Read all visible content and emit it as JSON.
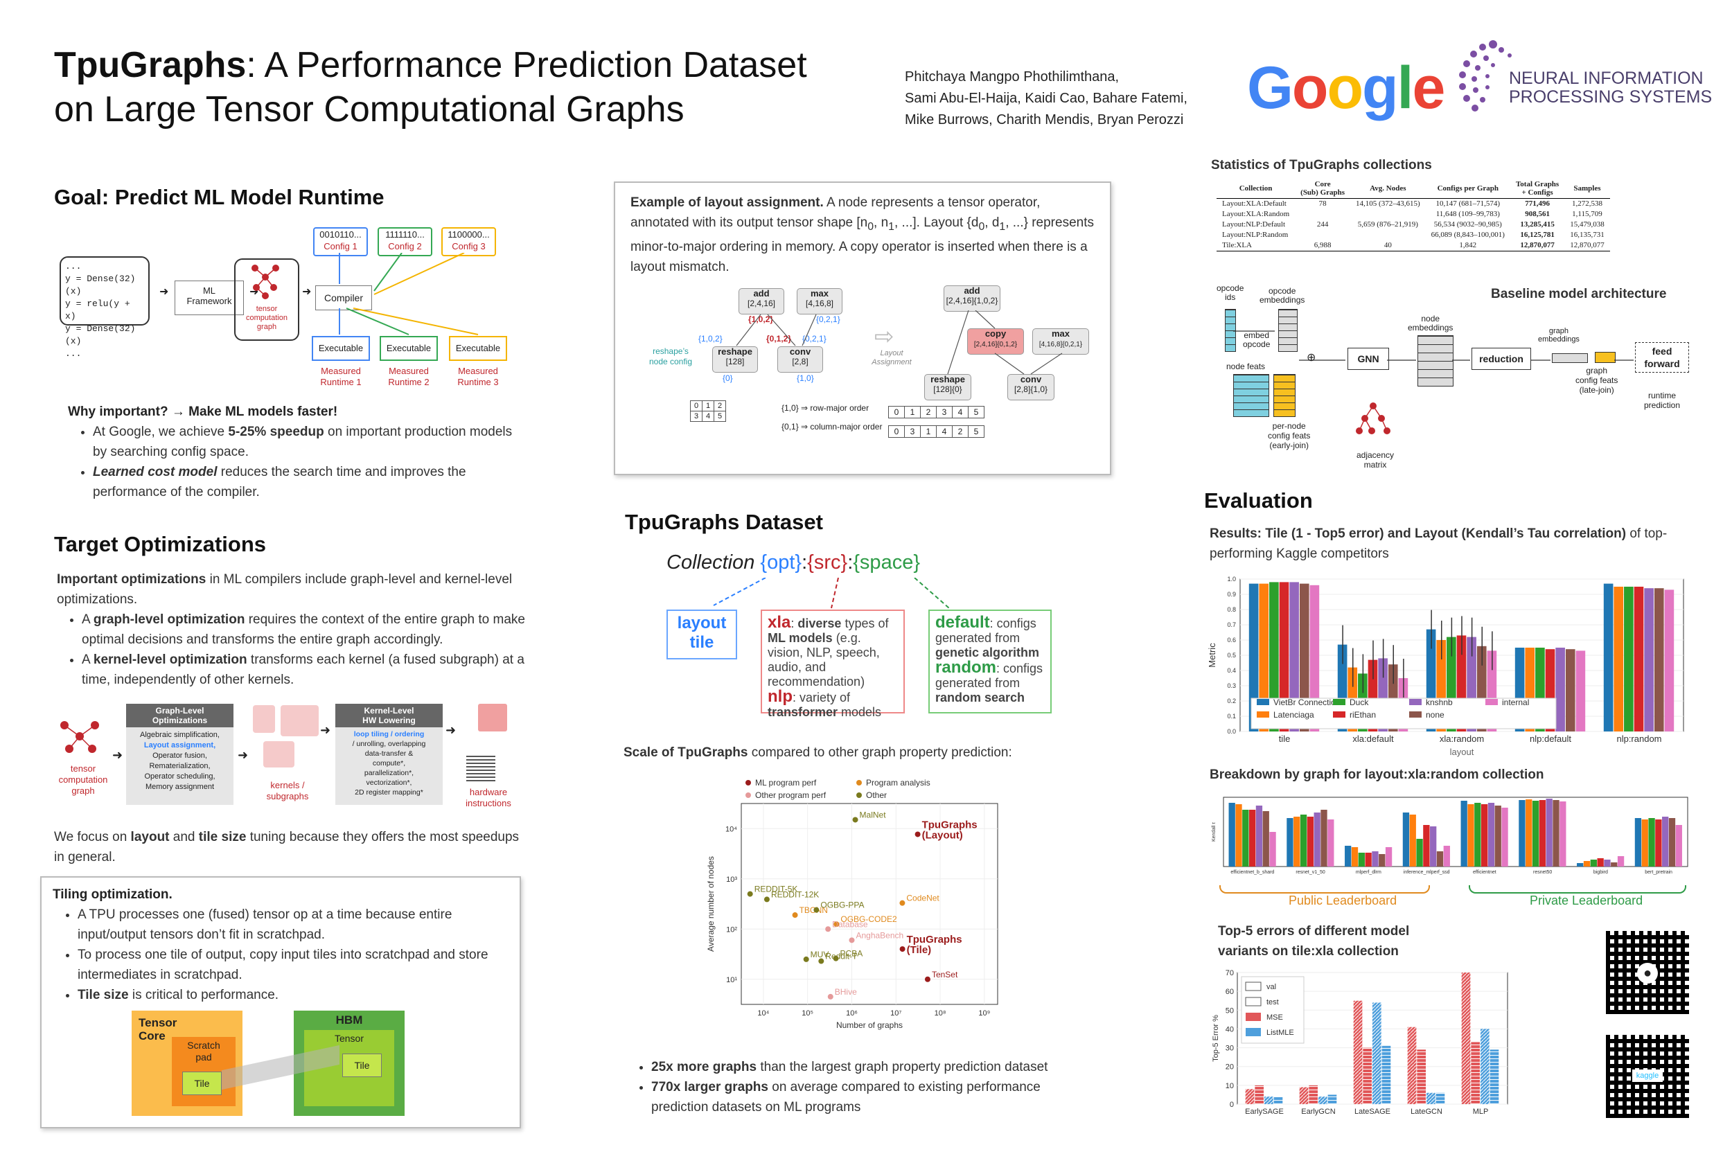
{
  "header": {
    "title_bold": "TpuGraphs",
    "title_rest_line1": ": A Performance Prediction Dataset",
    "title_line2": "on Large Tensor Computational Graphs",
    "authors": [
      "Phitchaya Mangpo Phothilimthana,",
      "Sami Abu-El-Haija, Kaidi Cao, Bahare Fatemi,",
      "Mike Burrows, Charith Mendis, Bryan Perozzi"
    ],
    "google_logo": "Google",
    "nips_logo": [
      "NEURAL INFORMATION",
      "PROCESSING SYSTEMS"
    ]
  },
  "goal": {
    "heading": "Goal: Predict ML Model Runtime",
    "code": [
      "...",
      "y = Dense(32)(x)",
      "y = relu(y + x)",
      "y = Dense(32)(x)",
      "..."
    ],
    "framework": "ML\nFramework",
    "graph_label": "tensor\ncomputation\ngraph",
    "compiler": "Compiler",
    "configs": [
      {
        "bits": "0010110...",
        "name": "Config 1",
        "color": "#4285f4"
      },
      {
        "bits": "1111110...",
        "name": "Config 2",
        "color": "#34a853"
      },
      {
        "bits": "1100000...",
        "name": "Config 3",
        "color": "#f4b400"
      }
    ],
    "executable": "Executable",
    "runtimes": [
      "Measured\nRuntime 1",
      "Measured\nRuntime 2",
      "Measured\nRuntime 3"
    ],
    "why_heading": "Why important? → Make ML models faster!",
    "why_b1_a": "At Google, we achieve ",
    "why_b1_b": "5-25% speedup",
    "why_b1_c": " on important production models by searching config space.",
    "why_b2_a": "Learned cost model",
    "why_b2_b": " reduces the search time and improves the performance of the compiler."
  },
  "target": {
    "heading": "Target Optimizations",
    "intro_a": "Important optimizations",
    "intro_b": " in ML compilers include graph-level and kernel-level optimizations.",
    "b1_a": "A ",
    "b1_b": "graph-level optimization",
    "b1_c": " requires the context of the entire graph to make optimal decisions and transforms the entire graph accordingly.",
    "b2_a": "A ",
    "b2_b": "kernel-level optimization",
    "b2_c": " transforms each kernel (a fused subgraph) at a time, independently of other kernels.",
    "fig_graph": "tensor\ncomputation\ngraph",
    "graph_level_title": "Graph-Level\nOptimizations",
    "graph_level_items": [
      "Algebraic simplification,",
      "Layout assignment,",
      "Operator fusion,",
      "Rematerialization,",
      "Operator scheduling,",
      "Memory assignment"
    ],
    "kernels_label": "kernels /\nsubgraphs",
    "kernel_level_title": "Kernel-Level\nHW Lowering",
    "kernel_level_items": [
      "loop tiling / ordering",
      "/ unrolling, overlapping",
      "data-transfer &",
      "compute*,",
      "parallelization*,",
      "vectorization*,",
      "2D register mapping*"
    ],
    "hw_label": "hardware\ninstructions",
    "focus_a": "We focus on ",
    "focus_b": "layout",
    "focus_c": " and ",
    "focus_d": "tile size",
    "focus_e": " tuning because they offers the most speedups in general."
  },
  "tiling": {
    "heading": "Tiling optimization.",
    "b1": "A TPU processes one (fused) tensor op at a time because entire input/output tensors don’t fit in scratchpad.",
    "b2": "To process one tile of output, copy input tiles into scratchpad and store intermediates in scratchpad.",
    "b3_a": "Tile size",
    "b3_b": " is critical to performance.",
    "tensor_core": "Tensor\nCore",
    "scratchpad": "Scratch\npad",
    "tile": "Tile",
    "hbm": "HBM",
    "tensor": "Tensor"
  },
  "layout_example": {
    "t1": "Example of layout assignment.",
    "t2": " A node represents a tensor operator, annotated with its output tensor shape [n",
    "t3": ", n",
    "t4": ", ...]. Layout {d",
    "t5": ", d",
    "t6": ", ...} represents minor-to-major ordering in memory. A copy operator is inserted when there is a layout mismatch.",
    "sub0": "0",
    "sub1": "1",
    "left_nodes": [
      {
        "op": "add",
        "shape": "[2,4,16]"
      },
      {
        "op": "max",
        "shape": "[4,16,8]"
      },
      {
        "op": "reshape",
        "shape": "[128]"
      },
      {
        "op": "conv",
        "shape": "[2,8]"
      }
    ],
    "left_layouts": [
      "{1,0,2}",
      "{1,0,2}",
      "{0,1,2}",
      "{0,2,1}",
      "{0,2,1}",
      "{0}",
      "{1,0}"
    ],
    "reshape_config": "reshape’s\nnode config",
    "row_major": "{1,0} ⇒ row-major order",
    "col_major": "{0,1} ⇒ column-major order",
    "grid_small": [
      [
        "0",
        "1",
        "2"
      ],
      [
        "3",
        "4",
        "5"
      ]
    ],
    "row_order": [
      "0",
      "1",
      "2",
      "3",
      "4",
      "5"
    ],
    "col_order": [
      "0",
      "3",
      "1",
      "4",
      "2",
      "5"
    ],
    "arrow_label": "Layout\nAssignment",
    "right_nodes": [
      {
        "op": "add",
        "shape": "[2,4,16]{1,0,2}"
      },
      {
        "op": "copy",
        "shape": "[2,4,16]{0,1,2}"
      },
      {
        "op": "max",
        "shape": "[4,16,8]{0,2,1}"
      },
      {
        "op": "reshape",
        "shape": "[128]{0}"
      },
      {
        "op": "conv",
        "shape": "[2,8]{1,0}"
      }
    ]
  },
  "dataset": {
    "heading": "TpuGraphs Dataset",
    "coll": "Collection ",
    "opt": "{opt}",
    "src": "{src}",
    "space": "{space}",
    "colon": ":",
    "opt_box": "layout\ntile",
    "src_xla": "xla",
    "src_xla_a": ": ",
    "src_xla_b": "diverse",
    "src_xla_c": " types of ",
    "src_xla_d": "ML models",
    "src_xla_e": " (e.g. vision, NLP, speech, audio, and recommendation)",
    "src_nlp": "nlp",
    "src_nlp_a": ": variety of ",
    "src_nlp_b": "transformer",
    "src_nlp_c": " models",
    "space_default": "default",
    "space_default_a": ": configs generated from ",
    "space_default_b": "genetic algorithm",
    "space_random": "random",
    "space_random_a": ": configs generated from ",
    "space_random_b": "random search",
    "scale_a": "Scale of TpuGraphs",
    "scale_b": " compared to other graph property prediction:",
    "b1_a": "25x more graphs",
    "b1_b": " than the largest graph property prediction dataset",
    "b2_a": "770x larger graphs",
    "b2_b": " on average compared to existing performance prediction datasets on ML programs"
  },
  "stats": {
    "heading": "Statistics of TpuGraphs collections",
    "columns": [
      "Collection",
      "Core\n(Sub) Graphs",
      "Avg. Nodes",
      "Configs per Graph",
      "Total Graphs\n+ Configs",
      "Samples"
    ],
    "rows": [
      [
        "Layout:XLA:Default",
        "78",
        "14,105 (372–43,615)",
        "10,147 (681–71,574)",
        "771,496",
        "1,272,538"
      ],
      [
        "Layout:XLA:Random",
        "",
        "",
        "11,648 (109–99,783)",
        "908,561",
        "1,115,709"
      ],
      [
        "Layout:NLP:Default",
        "244",
        "5,659 (876–21,919)",
        "56,534 (9032–90,985)",
        "13,285,415",
        "15,479,038"
      ],
      [
        "Layout:NLP:Random",
        "",
        "",
        "66,089 (8,843–100,001)",
        "16,125,781",
        "16,135,731"
      ],
      [
        "Tile:XLA",
        "6,988",
        "40",
        "1,842",
        "12,870,077",
        "12,870,077"
      ]
    ]
  },
  "baseline": {
    "heading": "Baseline model architecture",
    "opcode_ids": "opcode\nids",
    "opcode_emb": "opcode\nembeddings",
    "embed_opcode": "embed\nopcode",
    "node_feats": "node feats",
    "per_node": "per-node\nconfig feats\n(early-join)",
    "gnn": "GNN",
    "adjacency": "adjacency\nmatrix",
    "node_emb": "node\nembeddings",
    "reduction": "reduction",
    "graph_emb": "graph\nembeddings",
    "graph_config": "graph\nconfig feats\n(late-join)",
    "ff": "feed\nforward",
    "runtime": "runtime\nprediction"
  },
  "evaluation": {
    "heading": "Evaluation",
    "results_a": "Results: Tile (1 - Top5 error) and Layout (Kendall’s Tau correlation)",
    "results_b": " of top-performing Kaggle competitors",
    "breakdown": "Breakdown by graph for layout:xla:random collection",
    "public": "Public Leaderboard",
    "private": "Private Leaderboard",
    "top5_heading": "Top-5 errors of different model variants on tile:xla collection",
    "breakdown_ticks": [
      "efficientnet_b_shard",
      "resnet_v1_50",
      "mlperf_dlrm",
      "inference_mlperf_ssd",
      "efficientnet",
      "resnet50",
      "bigbird",
      "bert_pretrain"
    ]
  },
  "chart_data": [
    {
      "type": "bar",
      "title": "",
      "xlabel": "layout",
      "ylabel": "Metric",
      "ylim": [
        0,
        1.0
      ],
      "categories": [
        "tile",
        "xla:default",
        "xla:random",
        "nlp:default",
        "nlp:random"
      ],
      "series": [
        {
          "name": "VietBr Connection",
          "color": "#1f77b4",
          "values": [
            0.97,
            0.57,
            0.67,
            0.55,
            0.97
          ]
        },
        {
          "name": "Latenciaga",
          "color": "#ff7f0e",
          "values": [
            0.97,
            0.42,
            0.6,
            0.55,
            0.95
          ]
        },
        {
          "name": "Duck",
          "color": "#2ca02c",
          "values": [
            0.98,
            0.38,
            0.62,
            0.55,
            0.95
          ]
        },
        {
          "name": "riEthan",
          "color": "#d62728",
          "values": [
            0.98,
            0.47,
            0.63,
            0.54,
            0.95
          ]
        },
        {
          "name": "knshnb",
          "color": "#9467bd",
          "values": [
            0.98,
            0.48,
            0.62,
            0.55,
            0.94
          ]
        },
        {
          "name": "none",
          "color": "#8c564b",
          "values": [
            0.97,
            0.44,
            0.56,
            0.54,
            0.94
          ]
        },
        {
          "name": "internal",
          "color": "#e377c2",
          "values": [
            0.96,
            0.35,
            0.53,
            0.53,
            0.93
          ]
        }
      ],
      "yticks": [
        "0.0",
        "0.1",
        "0.2",
        "0.3",
        "0.4",
        "0.5",
        "0.6",
        "0.7",
        "0.8",
        "0.9",
        "1.0"
      ]
    },
    {
      "type": "scatter",
      "xlabel": "Number of graphs",
      "ylabel": "Average number of nodes",
      "xscale": "log",
      "yscale": "log",
      "xticks": [
        "10⁴",
        "10⁵",
        "10⁶",
        "10⁷",
        "10⁸",
        "10⁹"
      ],
      "yticks": [
        "10¹",
        "10²",
        "10³",
        "10⁴"
      ],
      "legend": [
        {
          "name": "ML program perf",
          "color": "#9b1c1c"
        },
        {
          "name": "Program analysis",
          "color": "#e08a1e"
        },
        {
          "name": "Other program perf",
          "color": "#e59a9a"
        },
        {
          "name": "Other",
          "color": "#7a7a1e"
        }
      ],
      "points": [
        {
          "label": "MalNet",
          "x": 1200000,
          "y": 15000,
          "group": "Other"
        },
        {
          "label": "TpuGraphs\n(Layout)",
          "x": 31000000,
          "y": 7700,
          "group": "ML program perf"
        },
        {
          "label": "REDDIT-5K",
          "x": 5000,
          "y": 500,
          "group": "Other"
        },
        {
          "label": "REDDIT-12K",
          "x": 12000,
          "y": 390,
          "group": "Other"
        },
        {
          "label": "TBCNN",
          "x": 52000,
          "y": 190,
          "group": "Program analysis"
        },
        {
          "label": "OGBG-PPA",
          "x": 158000,
          "y": 240,
          "group": "Other"
        },
        {
          "label": "CodeNet",
          "x": 13900000,
          "y": 330,
          "group": "Program analysis"
        },
        {
          "label": "OGBG-CODE2",
          "x": 450000,
          "y": 125,
          "group": "Program analysis"
        },
        {
          "label": "Database",
          "x": 290000,
          "y": 100,
          "group": "Other program perf"
        },
        {
          "label": "AnghaBench",
          "x": 1000000,
          "y": 60,
          "group": "Other program perf"
        },
        {
          "label": "TpuGraphs\n(Tile)",
          "x": 14000000,
          "y": 40,
          "group": "ML program perf"
        },
        {
          "label": "MUV",
          "x": 93000,
          "y": 25,
          "group": "Other"
        },
        {
          "label": "PCBA",
          "x": 437000,
          "y": 26,
          "group": "Other"
        },
        {
          "label": "Reddit-T",
          "x": 203000,
          "y": 23,
          "group": "Other"
        },
        {
          "label": "TenSet",
          "x": 52000000,
          "y": 10,
          "group": "ML program perf"
        },
        {
          "label": "BHive",
          "x": 330000,
          "y": 4.5,
          "group": "Other program perf"
        }
      ]
    },
    {
      "type": "bar",
      "ylabel": "Top-5 Error %",
      "ylim": [
        0,
        70
      ],
      "yticks": [
        "0",
        "10",
        "20",
        "30",
        "40",
        "50",
        "60",
        "70"
      ],
      "categories": [
        "EarlySAGE",
        "EarlyGCN",
        "LateSAGE",
        "LateGCN",
        "MLP"
      ],
      "legend": [
        "val",
        "test",
        "MSE",
        "ListMLE"
      ],
      "series": [
        {
          "name": "MSE val",
          "color": "#e15759",
          "values": [
            8,
            9,
            55,
            41,
            70
          ]
        },
        {
          "name": "MSE test",
          "color": "#e15759",
          "values": [
            10,
            10,
            30,
            29,
            33
          ]
        },
        {
          "name": "ListMLE val",
          "color": "#4e9fdc",
          "values": [
            4,
            4,
            54,
            6,
            40
          ]
        },
        {
          "name": "ListMLE test",
          "color": "#4e9fdc",
          "values": [
            4,
            5,
            31,
            6,
            29
          ]
        }
      ]
    },
    {
      "type": "bar",
      "ylabel": "Kendall τ",
      "ylim": [
        0,
        1.0
      ],
      "categories": [
        "efficientnet_b_shard",
        "resnet_v1_50",
        "mlperf_dlrm",
        "inference_mlperf_ssd",
        "efficientnet",
        "resnet50",
        "bigbird",
        "bert_pretrain"
      ],
      "series_colors": [
        "#1f77b4",
        "#ff7f0e",
        "#2ca02c",
        "#d62728",
        "#9467bd",
        "#8c564b",
        "#e377c2"
      ],
      "values": [
        [
          0.92,
          0.9,
          0.82,
          0.82,
          0.88,
          0.8,
          0.5
        ],
        [
          0.7,
          0.72,
          0.75,
          0.72,
          0.78,
          0.82,
          0.68
        ],
        [
          0.3,
          0.28,
          0.2,
          0.2,
          0.22,
          0.18,
          0.28
        ],
        [
          0.78,
          0.75,
          0.4,
          0.6,
          0.58,
          0.22,
          0.3
        ],
        [
          0.95,
          0.9,
          0.92,
          0.9,
          0.92,
          0.88,
          0.85
        ],
        [
          0.96,
          0.97,
          0.95,
          0.96,
          0.98,
          0.96,
          0.94
        ],
        [
          0.05,
          0.08,
          0.1,
          0.12,
          0.1,
          0.06,
          0.15
        ],
        [
          0.7,
          0.68,
          0.7,
          0.68,
          0.72,
          0.7,
          0.6
        ]
      ]
    }
  ]
}
